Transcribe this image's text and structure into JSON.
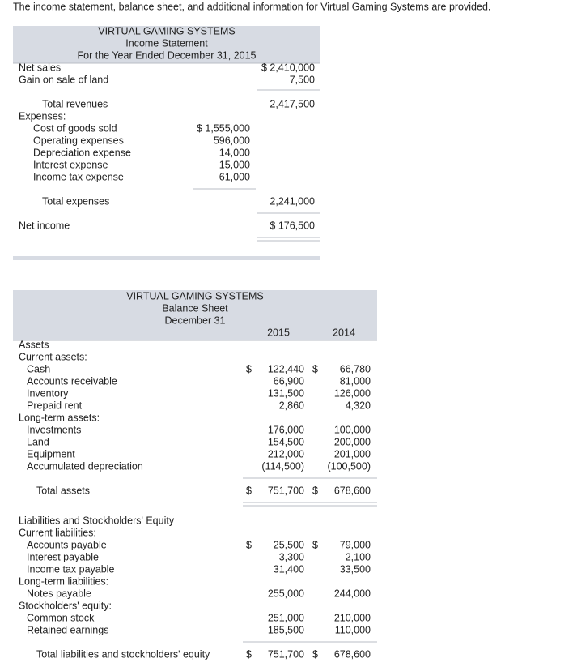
{
  "intro": "The income statement, balance sheet, and additional information for Virtual Gaming Systems are provided.",
  "income_statement": {
    "header": [
      "VIRTUAL GAMING SYSTEMS",
      "Income Statement",
      "For the Year Ended December 31, 2015"
    ],
    "rows": [
      {
        "label": "Net sales",
        "outer": "$ 2,410,000"
      },
      {
        "label": "Gain on sale of land",
        "outer": "7,500"
      },
      {
        "label": "Total revenues",
        "outer": "2,417,500"
      },
      {
        "label": "Expenses:"
      },
      {
        "label": "Cost of goods sold",
        "inner": "$ 1,555,000"
      },
      {
        "label": "Operating expenses",
        "inner": "596,000"
      },
      {
        "label": "Depreciation expense",
        "inner": "14,000"
      },
      {
        "label": "Interest expense",
        "inner": "15,000"
      },
      {
        "label": "Income tax expense",
        "inner": "61,000"
      },
      {
        "label": "Total expenses",
        "outer": "2,241,000"
      },
      {
        "label": "Net income",
        "outer": "$  176,500"
      }
    ]
  },
  "balance_sheet": {
    "header": [
      "VIRTUAL GAMING SYSTEMS",
      "Balance Sheet",
      "December 31"
    ],
    "years": [
      "2015",
      "2014"
    ],
    "rows": [
      {
        "label": "Assets"
      },
      {
        "label": "Current assets:"
      },
      {
        "label": "Cash",
        "d2015": "$",
        "v2015": "122,440",
        "d2014": "$",
        "v2014": "66,780"
      },
      {
        "label": "Accounts receivable",
        "v2015": "66,900",
        "v2014": "81,000"
      },
      {
        "label": "Inventory",
        "v2015": "131,500",
        "v2014": "126,000"
      },
      {
        "label": "Prepaid rent",
        "v2015": "2,860",
        "v2014": "4,320"
      },
      {
        "label": "Long-term assets:"
      },
      {
        "label": "Investments",
        "v2015": "176,000",
        "v2014": "100,000"
      },
      {
        "label": "Land",
        "v2015": "154,500",
        "v2014": "200,000"
      },
      {
        "label": "Equipment",
        "v2015": "212,000",
        "v2014": "201,000"
      },
      {
        "label": "Accumulated depreciation",
        "v2015": "(114,500)",
        "v2014": "(100,500)"
      },
      {
        "label": "Total assets",
        "d2015": "$",
        "v2015": "751,700",
        "d2014": "$",
        "v2014": "678,600"
      },
      {
        "label": "Liabilities and Stockholders' Equity"
      },
      {
        "label": "Current liabilities:"
      },
      {
        "label": "Accounts payable",
        "d2015": "$",
        "v2015": "25,500",
        "d2014": "$",
        "v2014": "79,000"
      },
      {
        "label": "Interest payable",
        "v2015": "3,300",
        "v2014": "2,100"
      },
      {
        "label": "Income tax payable",
        "v2015": "31,400",
        "v2014": "33,500"
      },
      {
        "label": "Long-term liabilities:"
      },
      {
        "label": "Notes payable",
        "v2015": "255,000",
        "v2014": "244,000"
      },
      {
        "label": "Stockholders' equity:"
      },
      {
        "label": "Common stock",
        "v2015": "251,000",
        "v2014": "210,000"
      },
      {
        "label": "Retained earnings",
        "v2015": "185,500",
        "v2014": "110,000"
      },
      {
        "label": "Total liabilities and stockholders' equity",
        "d2015": "$",
        "v2015": "751,700",
        "d2014": "$",
        "v2014": "678,600"
      }
    ]
  }
}
